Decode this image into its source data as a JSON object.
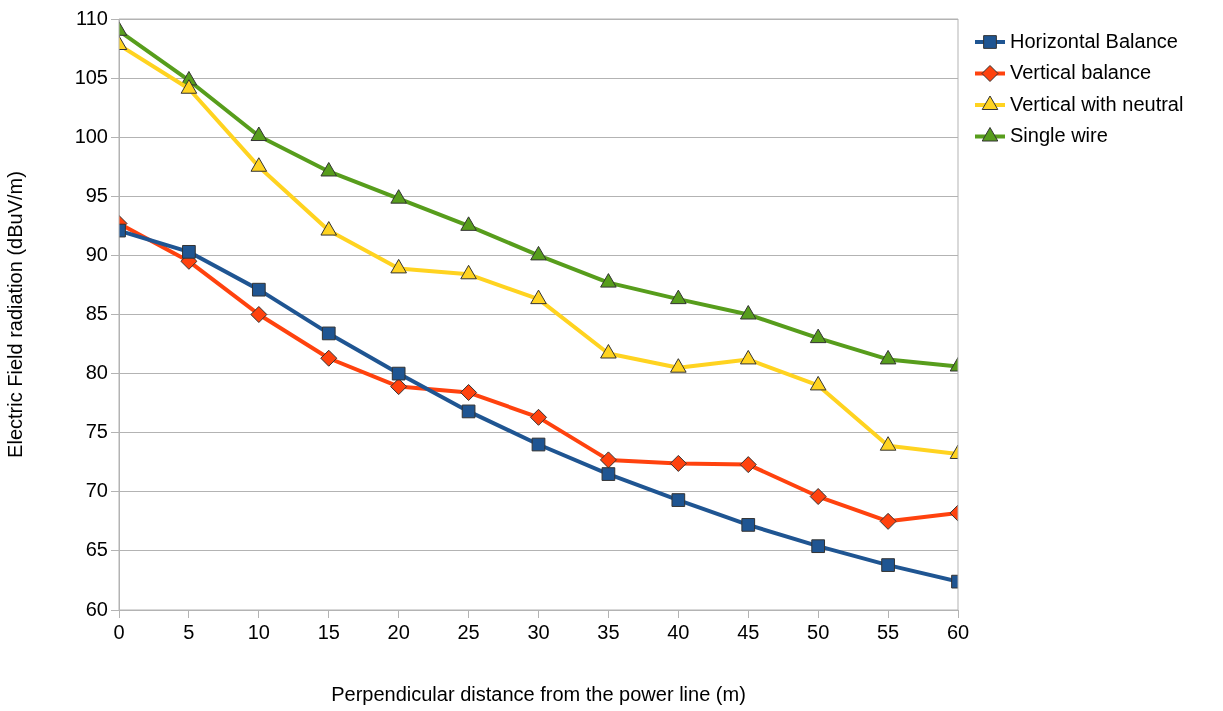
{
  "chart_data": {
    "type": "line",
    "xlabel": "Perpendicular distance from the power line (m)",
    "ylabel": "Electric Field radiation (dBuV/m)",
    "x": [
      0,
      5,
      10,
      15,
      20,
      25,
      30,
      35,
      40,
      45,
      50,
      55,
      60
    ],
    "xlim": [
      0,
      60
    ],
    "xticks": [
      0,
      5,
      10,
      15,
      20,
      25,
      30,
      35,
      40,
      45,
      50,
      55,
      60
    ],
    "ylim": [
      60,
      110
    ],
    "yticks": [
      60,
      65,
      70,
      75,
      80,
      85,
      90,
      95,
      100,
      105,
      110
    ],
    "grid": "y",
    "legend": "top right",
    "series": [
      {
        "name": "Horizontal Balance",
        "color": "#1f5592",
        "marker": "square",
        "values": [
          92.1,
          90.3,
          87.1,
          83.4,
          80.0,
          76.8,
          74.0,
          71.5,
          69.3,
          67.2,
          65.4,
          63.8,
          62.4
        ]
      },
      {
        "name": "Vertical balance",
        "color": "#ff420e",
        "marker": "diamond",
        "values": [
          92.7,
          89.5,
          85.0,
          81.3,
          78.9,
          78.4,
          76.3,
          72.7,
          72.4,
          72.3,
          69.6,
          67.5,
          68.2
        ]
      },
      {
        "name": "Vertical with neutral",
        "color": "#ffd320",
        "marker": "triangle",
        "values": [
          107.8,
          104.1,
          97.5,
          92.1,
          88.9,
          88.4,
          86.3,
          81.7,
          80.5,
          81.2,
          79.0,
          73.9,
          73.2
        ]
      },
      {
        "name": "Single wire",
        "color": "#579d1c",
        "marker": "triangle",
        "values": [
          109.0,
          104.8,
          100.1,
          97.1,
          94.8,
          92.5,
          90.0,
          87.7,
          86.3,
          85.0,
          83.0,
          81.2,
          80.6
        ]
      }
    ]
  }
}
